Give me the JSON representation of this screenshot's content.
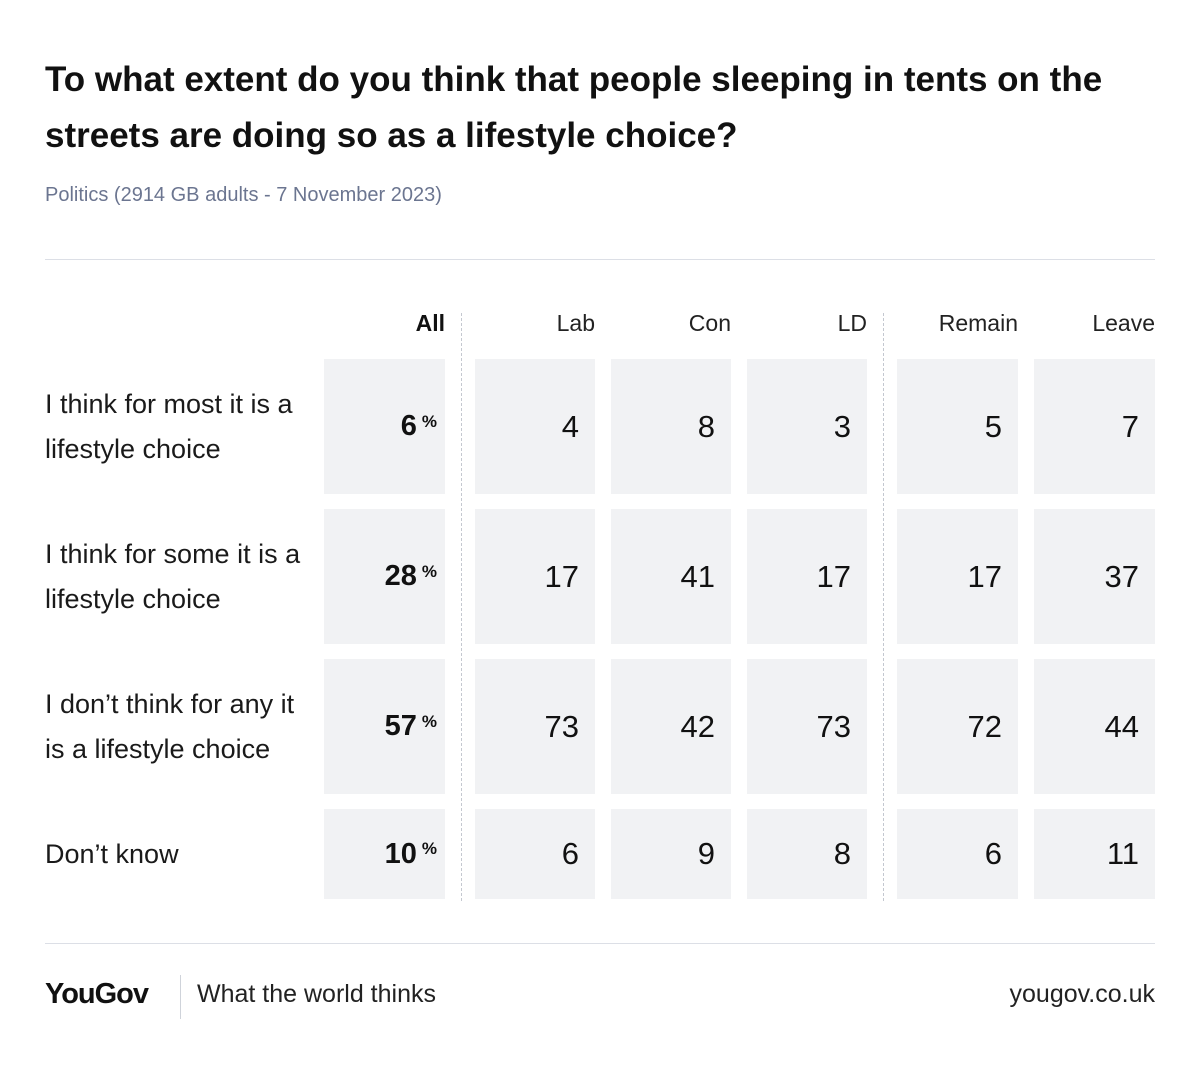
{
  "header": {
    "title": "To what extent do you think that people sleeping in tents on the streets are doing so as a lifestyle choice?",
    "subtitle": "Politics (2914 GB adults - 7 November 2023)"
  },
  "footer": {
    "brand": "YouGov",
    "tagline": "What the world thinks",
    "site": "yougov.co.uk"
  },
  "colors": {
    "cell_bg": "#f1f2f4",
    "subtitle": "#6b7590",
    "text": "#111111"
  },
  "chart_data": {
    "type": "table",
    "title": "To what extent do you think that people sleeping in tents on the streets are doing so as a lifestyle choice?",
    "columns": [
      "All",
      "Lab",
      "Con",
      "LD",
      "Remain",
      "Leave"
    ],
    "unit": "%",
    "rows": [
      {
        "label": "I think for most it is a lifestyle choice",
        "values": [
          6,
          4,
          8,
          3,
          5,
          7
        ]
      },
      {
        "label": "I think for some it is a lifestyle choice",
        "values": [
          28,
          17,
          41,
          17,
          17,
          37
        ]
      },
      {
        "label": "I don’t think for any it is a lifestyle choice",
        "values": [
          57,
          73,
          42,
          73,
          72,
          44
        ]
      },
      {
        "label": "Don’t know",
        "values": [
          10,
          6,
          9,
          8,
          6,
          11
        ]
      }
    ]
  }
}
